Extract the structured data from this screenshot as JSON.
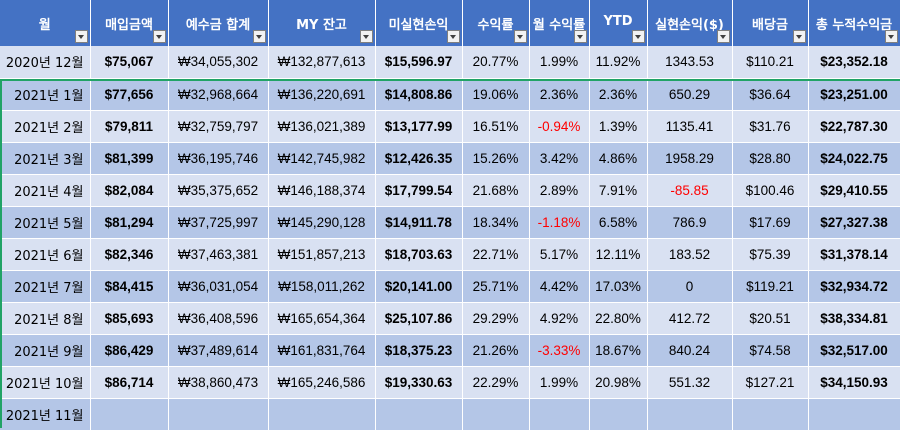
{
  "headers": [
    "월",
    "매입금액",
    "예수금 합계",
    "MY 잔고",
    "미실현손익",
    "수익률",
    "월 수익률",
    "YTD",
    "실현손익($)",
    "배당금",
    "총 누적수익금"
  ],
  "rows": [
    [
      "2020년 12월",
      "$75,067",
      "₩34,055,302",
      "₩132,877,613",
      "$15,596.97",
      "20.77%",
      "1.99%",
      "11.92%",
      "1343.53",
      "$110.21",
      "$23,352.18"
    ],
    [
      "2021년 1월",
      "$77,656",
      "₩32,968,664",
      "₩136,220,691",
      "$14,808.86",
      "19.06%",
      "2.36%",
      "2.36%",
      "650.29",
      "$36.64",
      "$23,251.00"
    ],
    [
      "2021년 2월",
      "$79,811",
      "₩32,759,797",
      "₩136,021,389",
      "$13,177.99",
      "16.51%",
      "-0.94%",
      "1.39%",
      "1135.41",
      "$31.76",
      "$22,787.30"
    ],
    [
      "2021년 3월",
      "$81,399",
      "₩36,195,746",
      "₩142,745,982",
      "$12,426.35",
      "15.26%",
      "3.42%",
      "4.86%",
      "1958.29",
      "$28.80",
      "$24,022.75"
    ],
    [
      "2021년 4월",
      "$82,084",
      "₩35,375,652",
      "₩146,188,374",
      "$17,799.54",
      "21.68%",
      "2.89%",
      "7.91%",
      "-85.85",
      "$100.46",
      "$29,410.55"
    ],
    [
      "2021년 5월",
      "$81,294",
      "₩37,725,997",
      "₩145,290,128",
      "$14,911.78",
      "18.34%",
      "-1.18%",
      "6.58%",
      "786.9",
      "$17.69",
      "$27,327.38"
    ],
    [
      "2021년 6월",
      "$82,346",
      "₩37,463,381",
      "₩151,857,213",
      "$18,703.63",
      "22.71%",
      "5.17%",
      "12.11%",
      "183.52",
      "$75.39",
      "$31,378.14"
    ],
    [
      "2021년 7월",
      "$84,415",
      "₩36,031,054",
      "₩158,011,262",
      "$20,141.00",
      "25.71%",
      "4.42%",
      "17.03%",
      "0",
      "$119.21",
      "$32,934.72"
    ],
    [
      "2021년 8월",
      "$85,693",
      "₩36,408,596",
      "₩165,654,364",
      "$25,107.86",
      "29.29%",
      "4.92%",
      "22.80%",
      "412.72",
      "$20.51",
      "$38,334.81"
    ],
    [
      "2021년 9월",
      "$86,429",
      "₩37,489,614",
      "₩161,831,764",
      "$18,375.23",
      "21.26%",
      "-3.33%",
      "18.67%",
      "840.24",
      "$74.58",
      "$32,517.00"
    ],
    [
      "2021년 10월",
      "$86,714",
      "₩38,860,473",
      "₩165,246,586",
      "$19,330.63",
      "22.29%",
      "1.99%",
      "20.98%",
      "551.32",
      "$127.21",
      "$34,150.93"
    ],
    [
      "2021년 11월",
      "",
      "",
      "",
      "",
      "",
      "",
      "",
      "",
      "",
      ""
    ]
  ],
  "style": {
    "header_bg": "#4472c4",
    "row_light": "#d9e1f2",
    "row_dark": "#b4c6e7",
    "negative": "#ff0000",
    "selection": "#21a366"
  }
}
